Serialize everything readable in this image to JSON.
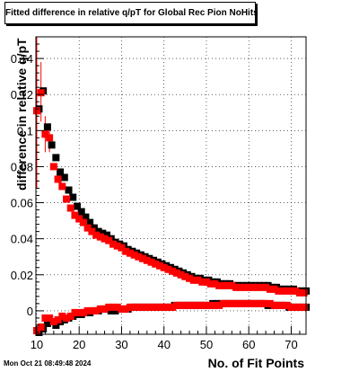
{
  "chart_data": {
    "type": "scatter",
    "title": "Fitted difference in relative q/pT for Global Rec Pion NoHits",
    "xlabel": "No. of Fit Points",
    "ylabel": "difference in relative q/pT",
    "timestamp": "Mon Oct 21 08:49:48 2024",
    "xlim": [
      9.8,
      73.5
    ],
    "ylim": [
      -0.013,
      0.152
    ],
    "x_ticks": [
      10,
      20,
      30,
      40,
      50,
      60,
      70
    ],
    "y_ticks": [
      0,
      0.02,
      0.04,
      0.06,
      0.08,
      0.1,
      0.12,
      0.14
    ],
    "y_tick_labels": [
      "0",
      "0.02",
      "0.04",
      "0.06",
      "0.08",
      "0.1",
      "0.12",
      "0.14"
    ],
    "grid": true,
    "series": [
      {
        "color": "#000000",
        "marker": "square",
        "role": "sigma",
        "x": [
          10,
          11,
          12,
          13,
          14,
          15,
          16,
          17,
          18,
          19,
          20,
          21,
          22,
          23,
          24,
          25,
          26,
          27,
          28,
          29,
          30,
          31,
          32,
          33,
          34,
          35,
          36,
          37,
          38,
          39,
          40,
          41,
          42,
          43,
          44,
          45,
          46,
          47,
          48,
          49,
          50,
          51,
          52,
          53,
          54,
          55,
          56,
          57,
          58,
          59,
          60,
          61,
          62,
          63,
          64,
          65,
          66,
          67,
          68,
          69,
          70,
          71,
          72,
          73
        ],
        "y": [
          0.112,
          0.122,
          0.102,
          0.092,
          0.085,
          0.077,
          0.074,
          0.067,
          0.063,
          0.058,
          0.055,
          0.052,
          0.049,
          0.046,
          0.044,
          0.043,
          0.042,
          0.04,
          0.038,
          0.037,
          0.036,
          0.034,
          0.033,
          0.032,
          0.031,
          0.03,
          0.029,
          0.028,
          0.027,
          0.026,
          0.025,
          0.024,
          0.023,
          0.022,
          0.021,
          0.02,
          0.019,
          0.018,
          0.018,
          0.017,
          0.017,
          0.016,
          0.016,
          0.015,
          0.015,
          0.015,
          0.014,
          0.014,
          0.014,
          0.014,
          0.014,
          0.014,
          0.014,
          0.014,
          0.014,
          0.013,
          0.013,
          0.012,
          0.012,
          0.012,
          0.012,
          0.011,
          0.011,
          0.011
        ]
      },
      {
        "color": "#ff0000",
        "marker": "square",
        "role": "sigma",
        "x": [
          10,
          11,
          12,
          13,
          14,
          15,
          16,
          17,
          18,
          19,
          20,
          21,
          22,
          23,
          24,
          25,
          26,
          27,
          28,
          29,
          30,
          31,
          32,
          33,
          34,
          35,
          36,
          37,
          38,
          39,
          40,
          41,
          42,
          43,
          44,
          45,
          46,
          47,
          48,
          49,
          50,
          51,
          52,
          53,
          54,
          55,
          56,
          57,
          58,
          59,
          60,
          61,
          62,
          63,
          64,
          65,
          66,
          67,
          68,
          69,
          70,
          71,
          72,
          73
        ],
        "y": [
          0.111,
          0.121,
          0.098,
          0.096,
          0.08,
          0.073,
          0.069,
          0.062,
          0.057,
          0.053,
          0.051,
          0.049,
          0.046,
          0.044,
          0.042,
          0.041,
          0.04,
          0.039,
          0.037,
          0.036,
          0.035,
          0.033,
          0.032,
          0.031,
          0.03,
          0.029,
          0.028,
          0.027,
          0.026,
          0.025,
          0.024,
          0.023,
          0.022,
          0.021,
          0.02,
          0.019,
          0.018,
          0.017,
          0.017,
          0.016,
          0.016,
          0.015,
          0.015,
          0.014,
          0.014,
          0.014,
          0.014,
          0.013,
          0.013,
          0.013,
          0.013,
          0.013,
          0.013,
          0.013,
          0.013,
          0.012,
          0.012,
          0.011,
          0.011,
          0.011,
          0.011,
          0.011,
          0.01,
          0.01
        ]
      },
      {
        "color": "#000000",
        "marker": "square",
        "role": "mean",
        "x": [
          10,
          11,
          12,
          13,
          14,
          15,
          16,
          17,
          18,
          19,
          20,
          21,
          22,
          23,
          24,
          25,
          26,
          27,
          28,
          29,
          30,
          31,
          32,
          33,
          34,
          35,
          36,
          37,
          38,
          39,
          40,
          41,
          42,
          43,
          44,
          45,
          46,
          47,
          48,
          49,
          50,
          51,
          52,
          53,
          54,
          55,
          56,
          57,
          58,
          59,
          60,
          61,
          62,
          63,
          64,
          65,
          66,
          67,
          68,
          69,
          70,
          71,
          72,
          73
        ],
        "y": [
          -0.012,
          -0.01,
          -0.007,
          -0.006,
          -0.008,
          -0.006,
          -0.005,
          -0.004,
          -0.003,
          -0.002,
          -0.002,
          -0.001,
          -0.001,
          0.0,
          0.0,
          0.001,
          0.001,
          0.0,
          0.0,
          0.001,
          0.001,
          0.001,
          0.002,
          0.002,
          0.002,
          0.002,
          0.002,
          0.002,
          0.002,
          0.002,
          0.002,
          0.002,
          0.003,
          0.003,
          0.003,
          0.003,
          0.003,
          0.003,
          0.003,
          0.003,
          0.003,
          0.004,
          0.004,
          0.004,
          0.004,
          0.004,
          0.004,
          0.004,
          0.004,
          0.004,
          0.004,
          0.004,
          0.004,
          0.004,
          0.003,
          0.003,
          0.003,
          0.003,
          0.003,
          0.002,
          0.002,
          0.002,
          0.002,
          0.002
        ]
      },
      {
        "color": "#ff0000",
        "marker": "square",
        "role": "mean",
        "x": [
          10,
          11,
          12,
          13,
          14,
          15,
          16,
          17,
          18,
          19,
          20,
          21,
          22,
          23,
          24,
          25,
          26,
          27,
          28,
          29,
          30,
          31,
          32,
          33,
          34,
          35,
          36,
          37,
          38,
          39,
          40,
          41,
          42,
          43,
          44,
          45,
          46,
          47,
          48,
          49,
          50,
          51,
          52,
          53,
          54,
          55,
          56,
          57,
          58,
          59,
          60,
          61,
          62,
          63,
          64,
          65,
          66,
          67,
          68,
          69,
          70,
          71,
          72,
          73
        ],
        "y": [
          -0.011,
          -0.009,
          -0.004,
          -0.004,
          -0.006,
          -0.005,
          -0.003,
          -0.004,
          -0.003,
          -0.001,
          -0.001,
          -0.001,
          0.0,
          0.0,
          0.0,
          0.001,
          0.001,
          0.002,
          0.002,
          0.002,
          0.001,
          0.001,
          0.002,
          0.002,
          0.002,
          0.002,
          0.002,
          0.002,
          0.002,
          0.002,
          0.002,
          0.002,
          0.002,
          0.003,
          0.003,
          0.003,
          0.003,
          0.003,
          0.003,
          0.003,
          0.003,
          0.003,
          0.003,
          0.003,
          0.004,
          0.004,
          0.004,
          0.004,
          0.004,
          0.004,
          0.004,
          0.004,
          0.004,
          0.004,
          0.004,
          0.004,
          0.003,
          0.003,
          0.003,
          0.003,
          0.002,
          0.002,
          0.002,
          0.002
        ]
      }
    ],
    "error_bars": [
      {
        "x": 10,
        "y_low": 0.068,
        "y_high": 0.152
      },
      {
        "x": 11,
        "y_low": 0.105,
        "y_high": 0.138
      },
      {
        "x": 12,
        "y_low": 0.088,
        "y_high": 0.108
      },
      {
        "x": 13,
        "y_low": 0.088,
        "y_high": 0.104
      }
    ]
  }
}
